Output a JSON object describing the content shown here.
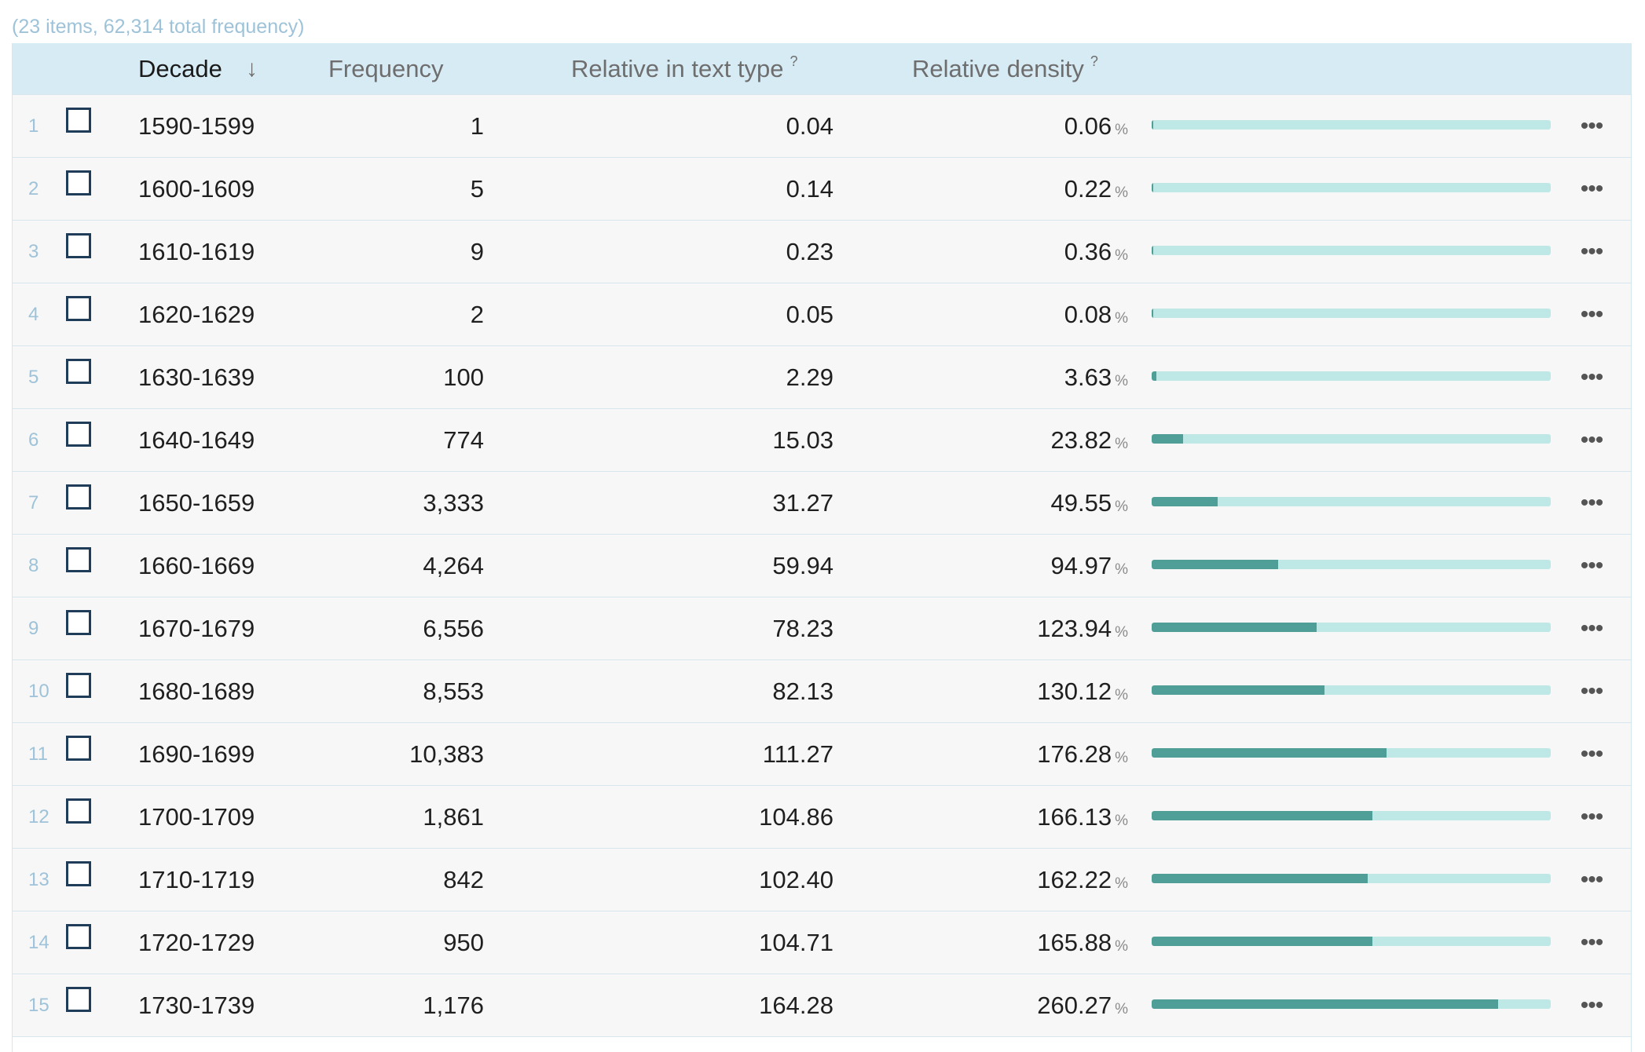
{
  "summary": "(23 items, 62,314 total frequency)",
  "header": {
    "decade": "Decade",
    "sort_icon": "↓",
    "frequency": "Frequency",
    "relative_text_type": "Relative in text type",
    "relative_text_type_help": "?",
    "relative_density": "Relative density",
    "relative_density_help": "?"
  },
  "pct_symbol": "%",
  "more_glyph": "•••",
  "colors": {
    "header_bg": "#d7ebf5",
    "bar_track": "#bde8e6",
    "bar_fill": "#4f9f98",
    "index_text": "#9ec3d9"
  },
  "bar_scale_max_percent": 300,
  "rows": [
    {
      "index": "1",
      "decade": "1590-1599",
      "frequency": "1",
      "relative_text_type": "0.04",
      "relative_density": "0.06",
      "density_value": 0.06
    },
    {
      "index": "2",
      "decade": "1600-1609",
      "frequency": "5",
      "relative_text_type": "0.14",
      "relative_density": "0.22",
      "density_value": 0.22
    },
    {
      "index": "3",
      "decade": "1610-1619",
      "frequency": "9",
      "relative_text_type": "0.23",
      "relative_density": "0.36",
      "density_value": 0.36
    },
    {
      "index": "4",
      "decade": "1620-1629",
      "frequency": "2",
      "relative_text_type": "0.05",
      "relative_density": "0.08",
      "density_value": 0.08
    },
    {
      "index": "5",
      "decade": "1630-1639",
      "frequency": "100",
      "relative_text_type": "2.29",
      "relative_density": "3.63",
      "density_value": 3.63
    },
    {
      "index": "6",
      "decade": "1640-1649",
      "frequency": "774",
      "relative_text_type": "15.03",
      "relative_density": "23.82",
      "density_value": 23.82
    },
    {
      "index": "7",
      "decade": "1650-1659",
      "frequency": "3,333",
      "relative_text_type": "31.27",
      "relative_density": "49.55",
      "density_value": 49.55
    },
    {
      "index": "8",
      "decade": "1660-1669",
      "frequency": "4,264",
      "relative_text_type": "59.94",
      "relative_density": "94.97",
      "density_value": 94.97
    },
    {
      "index": "9",
      "decade": "1670-1679",
      "frequency": "6,556",
      "relative_text_type": "78.23",
      "relative_density": "123.94",
      "density_value": 123.94
    },
    {
      "index": "10",
      "decade": "1680-1689",
      "frequency": "8,553",
      "relative_text_type": "82.13",
      "relative_density": "130.12",
      "density_value": 130.12
    },
    {
      "index": "11",
      "decade": "1690-1699",
      "frequency": "10,383",
      "relative_text_type": "111.27",
      "relative_density": "176.28",
      "density_value": 176.28
    },
    {
      "index": "12",
      "decade": "1700-1709",
      "frequency": "1,861",
      "relative_text_type": "104.86",
      "relative_density": "166.13",
      "density_value": 166.13
    },
    {
      "index": "13",
      "decade": "1710-1719",
      "frequency": "842",
      "relative_text_type": "102.40",
      "relative_density": "162.22",
      "density_value": 162.22
    },
    {
      "index": "14",
      "decade": "1720-1729",
      "frequency": "950",
      "relative_text_type": "104.71",
      "relative_density": "165.88",
      "density_value": 165.88
    },
    {
      "index": "15",
      "decade": "1730-1739",
      "frequency": "1,176",
      "relative_text_type": "164.28",
      "relative_density": "260.27",
      "density_value": 260.27
    }
  ]
}
